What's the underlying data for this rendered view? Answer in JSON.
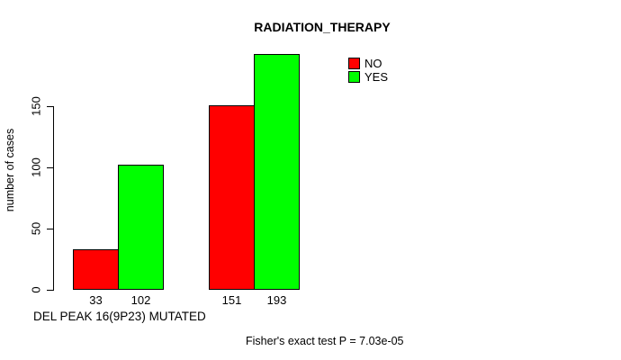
{
  "chart_data": {
    "type": "bar",
    "title": "RADIATION_THERAPY",
    "ylabel": "number of cases",
    "xlabel": "",
    "group_label": "DEL PEAK 16(9P23) MUTATED",
    "annotation": "Fisher's exact test P = 7.03e-05",
    "categories": [
      "",
      ""
    ],
    "series": [
      {
        "name": "NO",
        "color": "#ff0000",
        "values": [
          33,
          151
        ]
      },
      {
        "name": "YES",
        "color": "#00ff00",
        "values": [
          102,
          193
        ]
      }
    ],
    "bar_value_labels": [
      33,
      102,
      151,
      193
    ],
    "yticks": [
      0,
      50,
      100,
      150
    ],
    "ylim": [
      0,
      150
    ],
    "grid": false,
    "legend": {
      "position": "top-right",
      "entries": [
        {
          "label": "NO",
          "color": "#ff0000"
        },
        {
          "label": "YES",
          "color": "#00ff00"
        }
      ]
    }
  },
  "colors": {
    "background": "#ffffff",
    "axis": "#000000",
    "text": "#000000",
    "bar_no": "#ff0000",
    "bar_yes": "#00ff00"
  }
}
